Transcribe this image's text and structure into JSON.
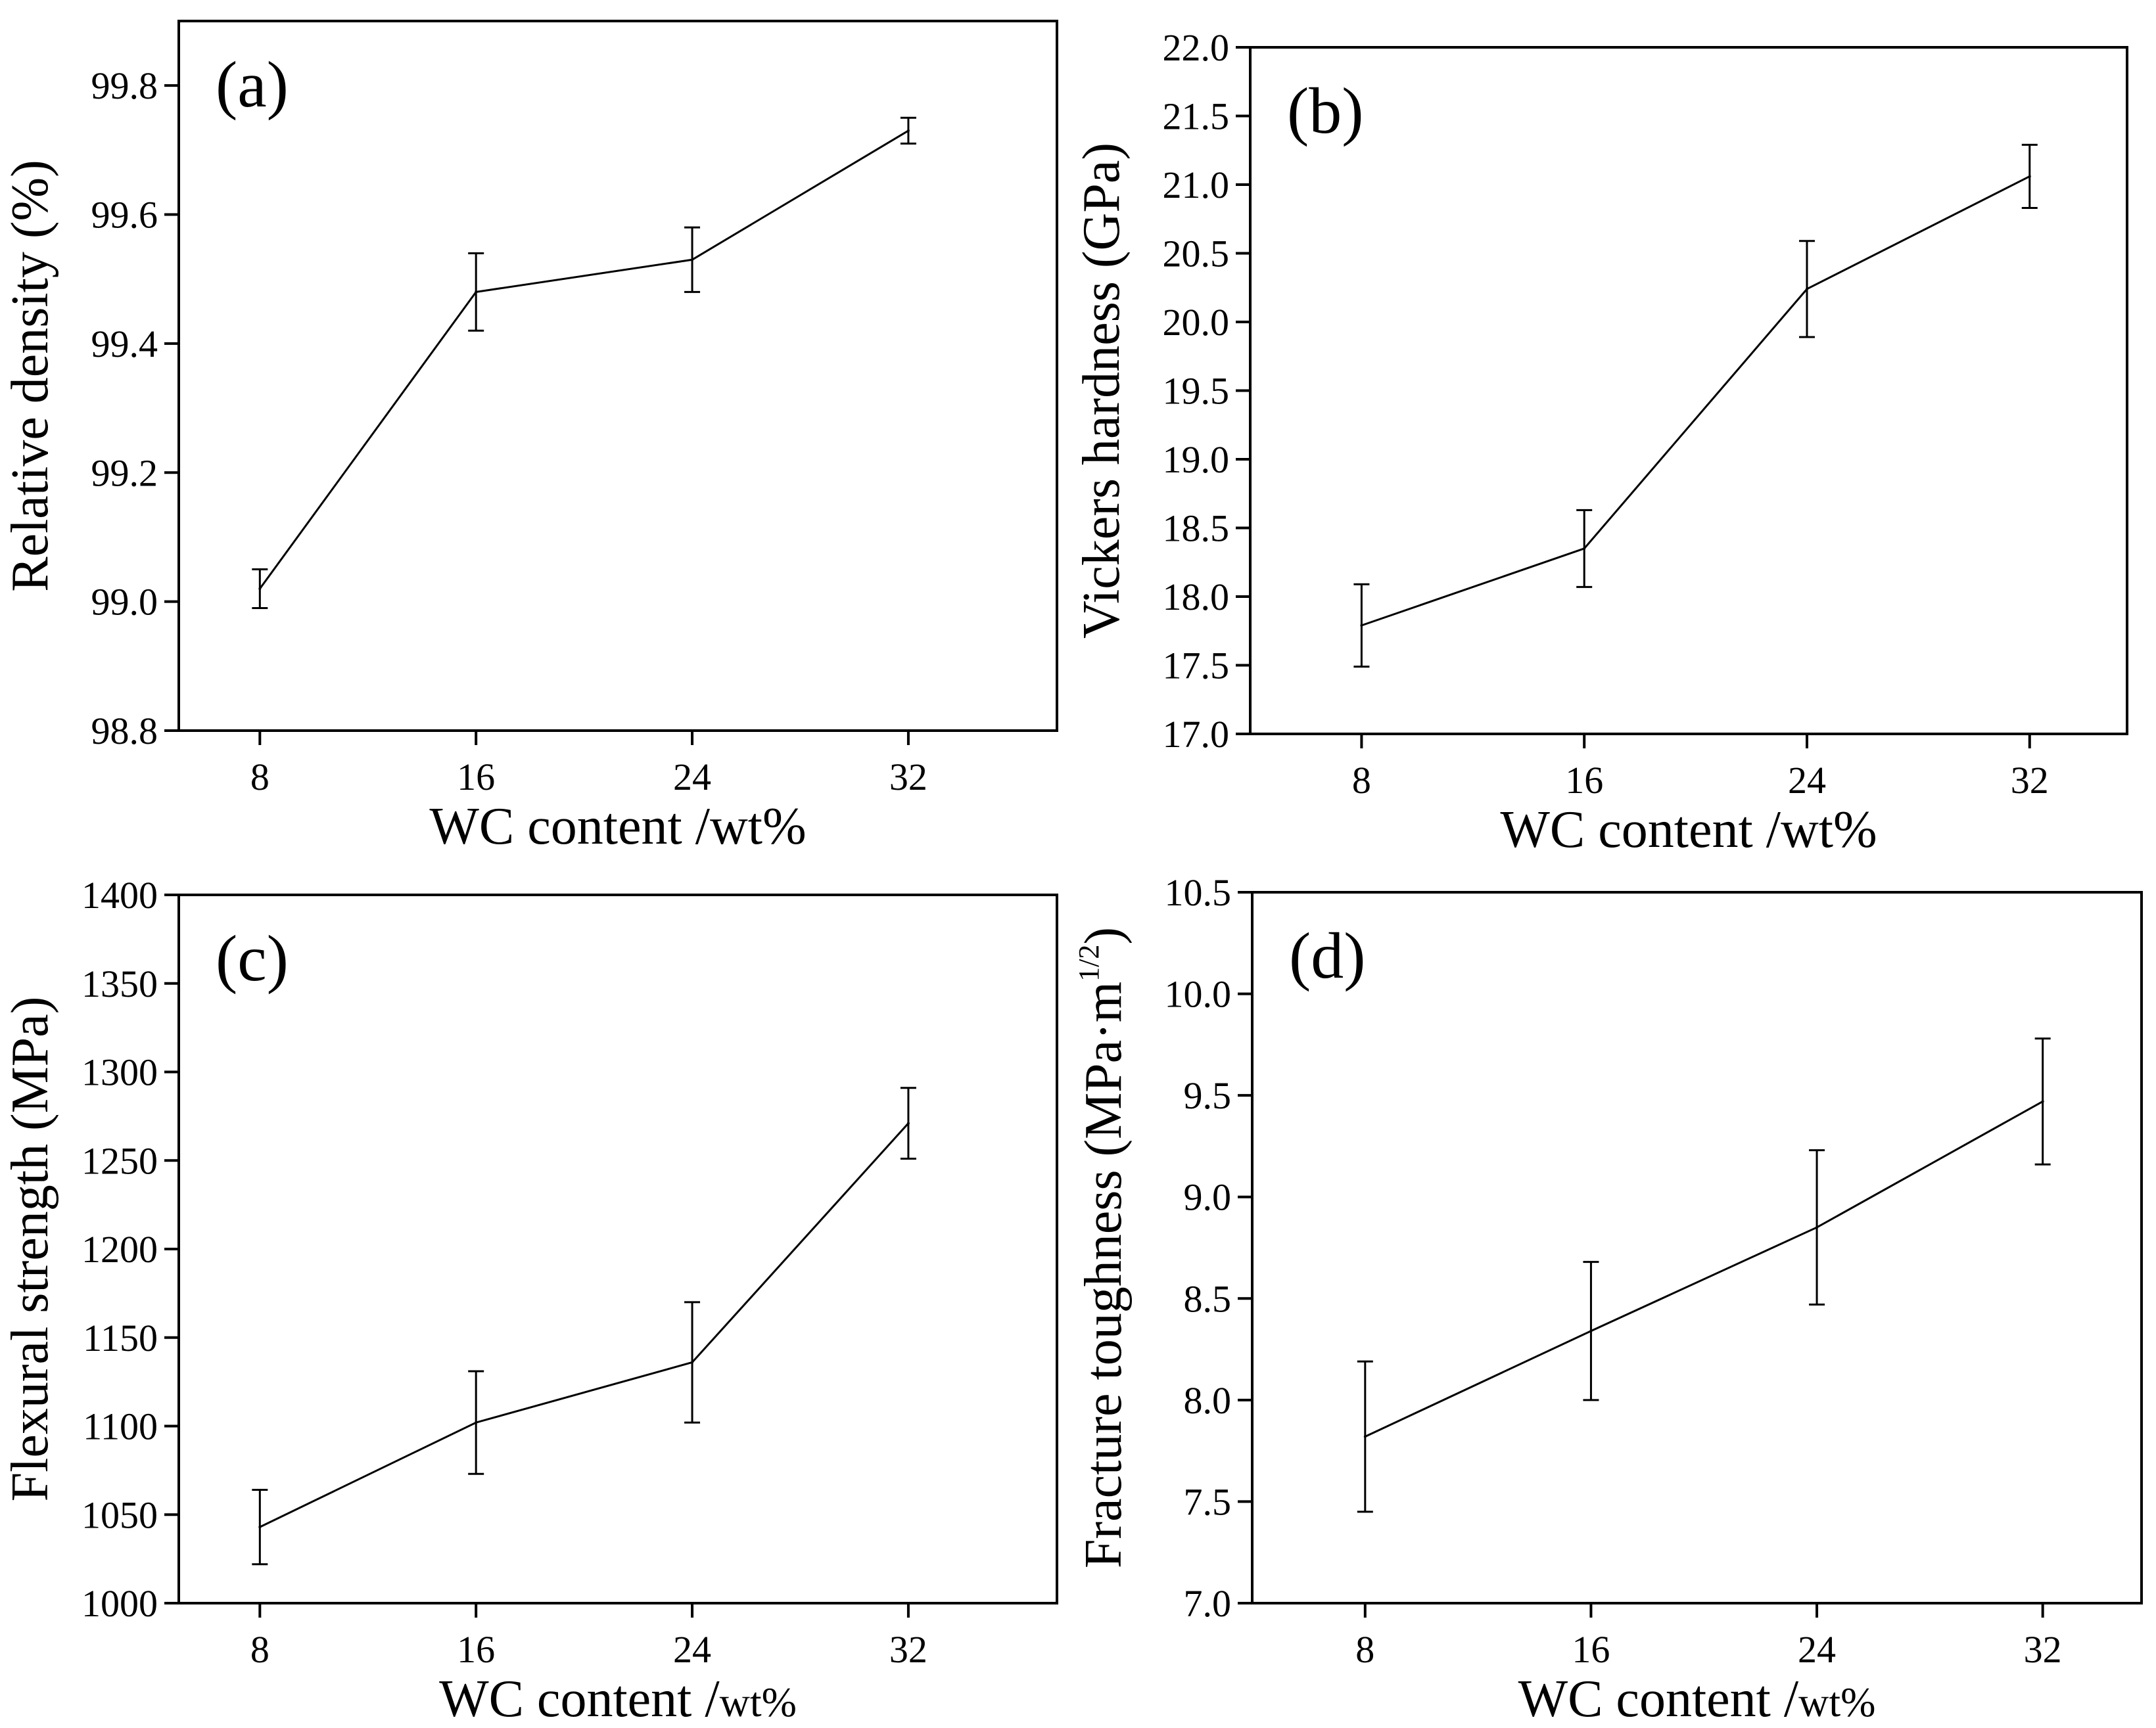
{
  "colors": {
    "line": "#000000",
    "background": "#ffffff"
  },
  "chart_data": [
    {
      "id": "a",
      "type": "line",
      "panel_label": "(a)",
      "xlabel_main": "WC content /wt%",
      "xlabel_unit": "",
      "ylabel_main": "Relative density (%)",
      "ylabel_sup": "",
      "ylabel_close": "",
      "x": [
        8,
        16,
        24,
        32
      ],
      "x_tick_labels": [
        "8",
        "16",
        "24",
        "32"
      ],
      "values": [
        99.02,
        99.48,
        99.53,
        99.73
      ],
      "errors": [
        0.03,
        0.06,
        0.05,
        0.02
      ],
      "ylim": [
        98.8,
        99.9
      ],
      "y_ticks": [
        98.8,
        99.0,
        99.2,
        99.4,
        99.6,
        99.8
      ],
      "y_tick_labels": [
        "98.8",
        "99.0",
        "99.2",
        "99.4",
        "99.6",
        "99.8"
      ]
    },
    {
      "id": "b",
      "type": "line",
      "panel_label": "(b)",
      "xlabel_main": "WC content /wt%",
      "xlabel_unit": "",
      "ylabel_main": "Vickers hardness (GPa)",
      "ylabel_sup": "",
      "ylabel_close": "",
      "x": [
        8,
        16,
        24,
        32
      ],
      "x_tick_labels": [
        "8",
        "16",
        "24",
        "32"
      ],
      "values": [
        17.79,
        18.35,
        20.24,
        21.06
      ],
      "errors": [
        0.3,
        0.28,
        0.35,
        0.23
      ],
      "ylim": [
        17.0,
        22.0
      ],
      "y_ticks": [
        17.0,
        17.5,
        18.0,
        18.5,
        19.0,
        19.5,
        20.0,
        20.5,
        21.0,
        21.5,
        22.0
      ],
      "y_tick_labels": [
        "17.0",
        "17.5",
        "18.0",
        "18.5",
        "19.0",
        "19.5",
        "20.0",
        "20.5",
        "21.0",
        "21.5",
        "22.0"
      ]
    },
    {
      "id": "c",
      "type": "line",
      "panel_label": "(c)",
      "xlabel_main": "WC content /",
      "xlabel_unit": "wt%",
      "ylabel_main": "Flexural strength (MPa)",
      "ylabel_sup": "",
      "ylabel_close": "",
      "x": [
        8,
        16,
        24,
        32
      ],
      "x_tick_labels": [
        "8",
        "16",
        "24",
        "32"
      ],
      "values": [
        1043,
        1102,
        1136,
        1271
      ],
      "errors": [
        21,
        29,
        34,
        20
      ],
      "ylim": [
        1000,
        1400
      ],
      "y_ticks": [
        1000,
        1050,
        1100,
        1150,
        1200,
        1250,
        1300,
        1350,
        1400
      ],
      "y_tick_labels": [
        "1000",
        "1050",
        "1100",
        "1150",
        "1200",
        "1250",
        "1300",
        "1350",
        "1400"
      ]
    },
    {
      "id": "d",
      "type": "line",
      "panel_label": "(d)",
      "xlabel_main": "WC content /",
      "xlabel_unit": "wt%",
      "ylabel_main": "Fracture toughness (MPa·m",
      "ylabel_sup": "1/2",
      "ylabel_close": ")",
      "x": [
        8,
        16,
        24,
        32
      ],
      "x_tick_labels": [
        "8",
        "16",
        "24",
        "32"
      ],
      "values": [
        7.82,
        8.34,
        8.85,
        9.47
      ],
      "errors": [
        0.37,
        0.34,
        0.38,
        0.31
      ],
      "ylim": [
        7.0,
        10.5
      ],
      "y_ticks": [
        7.0,
        7.5,
        8.0,
        8.5,
        9.0,
        9.5,
        10.0,
        10.5
      ],
      "y_tick_labels": [
        "7.0",
        "7.5",
        "8.0",
        "8.5",
        "9.0",
        "9.5",
        "10.0",
        "10.5"
      ]
    }
  ]
}
